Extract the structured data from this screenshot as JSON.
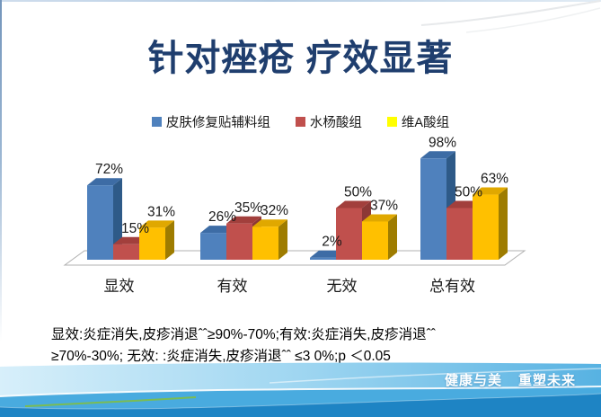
{
  "slide": {
    "title": "针对痤疮 疗效显著",
    "footnote": {
      "line1": "显效:炎症消失,皮疹消退ˆˆ≥90%-70%;有效:炎症消失,皮疹消退ˆˆ",
      "line2": "≥70%-30%; 无效: :炎症消失,皮疹消退ˆˆ ≤3 0%;p ＜0.05"
    },
    "footer": {
      "slogan_left": "健康与美",
      "slogan_right": "重塑未来"
    }
  },
  "colors": {
    "title": "#1F3E6E",
    "floor_stroke": "#B0B0B0",
    "label_text": "#1A1A1A",
    "wave_light": "#9AD4F0",
    "wave_medium": "#49ABDF",
    "wave_dark": "#1E84C4",
    "wave_accent_green": "#7FBE45"
  },
  "chart_data": {
    "type": "bar",
    "style": "3d-clustered",
    "categories": [
      "显效",
      "有效",
      "无效",
      "总有效"
    ],
    "series": [
      {
        "name": "皮肤修复贴辅料组",
        "color": "#4F81BD",
        "side_color": "#2E5A88",
        "top_color": "#3D6CA5",
        "legend_color": "#4F81BD",
        "values": [
          72,
          26,
          2,
          98
        ]
      },
      {
        "name": "水杨酸组",
        "color": "#C0504D",
        "side_color": "#8C3836",
        "top_color": "#A23F3C",
        "legend_color": "#C0504D",
        "values": [
          15,
          35,
          50,
          50
        ]
      },
      {
        "name": "维A酸组",
        "color": "#FFC000",
        "side_color": "#9E7C00",
        "top_color": "#E0A800",
        "legend_color": "#FFFF00",
        "values": [
          31,
          32,
          37,
          63
        ]
      }
    ],
    "value_suffix": "%",
    "data_labels": true,
    "ylim": [
      0,
      100
    ],
    "legend_position": "top",
    "axes": {
      "y_axis_visible": false,
      "x_axis_visible": true
    }
  }
}
